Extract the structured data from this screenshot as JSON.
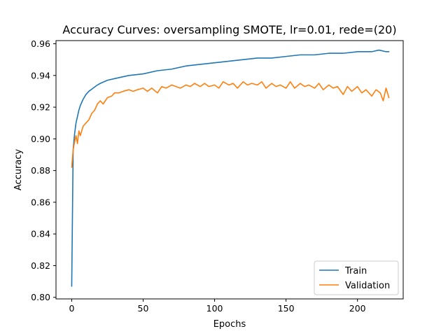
{
  "chart_data": {
    "type": "line",
    "title": "Accuracy Curves: oversampling SMOTE, lr=0.01, rede=(20)",
    "xlabel": "Epochs",
    "ylabel": "Accuracy",
    "xlim": [
      -11,
      232
    ],
    "ylim": [
      0.799,
      0.962
    ],
    "xticks": [
      0,
      50,
      100,
      150,
      200
    ],
    "yticks": [
      0.8,
      0.82,
      0.84,
      0.86,
      0.88,
      0.9,
      0.92,
      0.94,
      0.96
    ],
    "xtick_labels": [
      "0",
      "50",
      "100",
      "150",
      "200"
    ],
    "ytick_labels": [
      "0.80",
      "0.82",
      "0.84",
      "0.86",
      "0.88",
      "0.90",
      "0.92",
      "0.94",
      "0.96"
    ],
    "grid": false,
    "legend_position": "lower-right",
    "series": [
      {
        "name": "Train",
        "color": "#1f77b4",
        "x": [
          0,
          1,
          2,
          3,
          4,
          5,
          6,
          8,
          10,
          12,
          15,
          18,
          20,
          25,
          30,
          35,
          40,
          50,
          60,
          70,
          80,
          90,
          100,
          110,
          120,
          130,
          140,
          150,
          160,
          170,
          180,
          190,
          200,
          210,
          215,
          220,
          222
        ],
        "y": [
          0.807,
          0.893,
          0.903,
          0.91,
          0.914,
          0.918,
          0.921,
          0.925,
          0.928,
          0.93,
          0.932,
          0.934,
          0.935,
          0.937,
          0.938,
          0.939,
          0.94,
          0.941,
          0.943,
          0.944,
          0.946,
          0.947,
          0.948,
          0.949,
          0.95,
          0.951,
          0.951,
          0.952,
          0.953,
          0.953,
          0.954,
          0.954,
          0.955,
          0.955,
          0.956,
          0.955,
          0.955
        ]
      },
      {
        "name": "Validation",
        "color": "#ff7f0e",
        "x": [
          0,
          1,
          2,
          3,
          4,
          5,
          6,
          8,
          10,
          12,
          14,
          16,
          18,
          20,
          22,
          25,
          28,
          30,
          33,
          36,
          40,
          43,
          46,
          50,
          53,
          56,
          60,
          63,
          66,
          70,
          73,
          76,
          80,
          83,
          86,
          90,
          93,
          96,
          100,
          103,
          106,
          110,
          113,
          116,
          120,
          123,
          126,
          130,
          133,
          136,
          140,
          143,
          146,
          150,
          153,
          156,
          160,
          163,
          166,
          170,
          173,
          176,
          180,
          183,
          186,
          190,
          193,
          196,
          200,
          203,
          206,
          210,
          213,
          216,
          218,
          220,
          222
        ],
        "y": [
          0.882,
          0.893,
          0.898,
          0.902,
          0.897,
          0.905,
          0.902,
          0.908,
          0.91,
          0.912,
          0.916,
          0.918,
          0.922,
          0.924,
          0.922,
          0.926,
          0.927,
          0.929,
          0.929,
          0.93,
          0.931,
          0.93,
          0.931,
          0.932,
          0.93,
          0.932,
          0.929,
          0.933,
          0.932,
          0.934,
          0.933,
          0.932,
          0.934,
          0.933,
          0.935,
          0.933,
          0.935,
          0.933,
          0.934,
          0.932,
          0.936,
          0.934,
          0.935,
          0.932,
          0.936,
          0.934,
          0.935,
          0.934,
          0.936,
          0.932,
          0.935,
          0.933,
          0.934,
          0.932,
          0.936,
          0.932,
          0.935,
          0.933,
          0.934,
          0.932,
          0.935,
          0.931,
          0.934,
          0.932,
          0.933,
          0.928,
          0.933,
          0.93,
          0.933,
          0.929,
          0.931,
          0.927,
          0.931,
          0.929,
          0.924,
          0.932,
          0.926
        ]
      }
    ]
  }
}
